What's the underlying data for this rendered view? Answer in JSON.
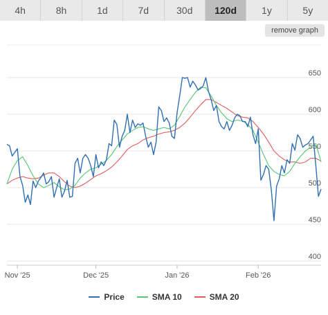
{
  "tabs": [
    {
      "label": "4h",
      "active": false
    },
    {
      "label": "8h",
      "active": false
    },
    {
      "label": "1d",
      "active": false
    },
    {
      "label": "7d",
      "active": false
    },
    {
      "label": "30d",
      "active": false
    },
    {
      "label": "120d",
      "active": true
    },
    {
      "label": "1y",
      "active": false
    },
    {
      "label": "5y",
      "active": false
    }
  ],
  "remove_graph_label": "remove graph",
  "chart_data": {
    "type": "line",
    "title": "",
    "xlabel": "",
    "ylabel": "",
    "ylim": [
      400,
      650
    ],
    "y_ticks": [
      400,
      450,
      500,
      550,
      600,
      650
    ],
    "x_domain": [
      "2025-10-28",
      "2026-02-25"
    ],
    "x_ticks": [
      {
        "date": "2025-11-01",
        "label": "Nov '25"
      },
      {
        "date": "2025-12-01",
        "label": "Dec '25"
      },
      {
        "date": "2026-01-01",
        "label": "Jan '26"
      },
      {
        "date": "2026-02-01",
        "label": "Feb '26"
      }
    ],
    "grid": true,
    "legend_position": "bottom",
    "series": [
      {
        "name": "Price",
        "color": "#2f6fb2",
        "points": [
          [
            "2025-10-28",
            559
          ],
          [
            "2025-10-29",
            557
          ],
          [
            "2025-10-30",
            543
          ],
          [
            "2025-10-31",
            548
          ],
          [
            "2025-11-01",
            553
          ],
          [
            "2025-11-02",
            515
          ],
          [
            "2025-11-03",
            503
          ],
          [
            "2025-11-04",
            480
          ],
          [
            "2025-11-05",
            490
          ],
          [
            "2025-11-06",
            477
          ],
          [
            "2025-11-07",
            509
          ],
          [
            "2025-11-08",
            500
          ],
          [
            "2025-11-09",
            509
          ],
          [
            "2025-11-10",
            514
          ],
          [
            "2025-11-11",
            520
          ],
          [
            "2025-11-12",
            505
          ],
          [
            "2025-11-13",
            508
          ],
          [
            "2025-11-14",
            515
          ],
          [
            "2025-11-15",
            487
          ],
          [
            "2025-11-16",
            500
          ],
          [
            "2025-11-17",
            512
          ],
          [
            "2025-11-18",
            487
          ],
          [
            "2025-11-19",
            495
          ],
          [
            "2025-11-20",
            510
          ],
          [
            "2025-11-21",
            487
          ],
          [
            "2025-11-22",
            488
          ],
          [
            "2025-11-23",
            533
          ],
          [
            "2025-11-24",
            540
          ],
          [
            "2025-11-25",
            520
          ],
          [
            "2025-11-26",
            540
          ],
          [
            "2025-11-27",
            545
          ],
          [
            "2025-11-28",
            540
          ],
          [
            "2025-11-29",
            530
          ],
          [
            "2025-11-30",
            515
          ],
          [
            "2025-12-01",
            545
          ],
          [
            "2025-12-02",
            527
          ],
          [
            "2025-12-03",
            535
          ],
          [
            "2025-12-04",
            530
          ],
          [
            "2025-12-05",
            538
          ],
          [
            "2025-12-06",
            560
          ],
          [
            "2025-12-07",
            557
          ],
          [
            "2025-12-08",
            592
          ],
          [
            "2025-12-09",
            586
          ],
          [
            "2025-12-10",
            555
          ],
          [
            "2025-12-11",
            570
          ],
          [
            "2025-12-12",
            578
          ],
          [
            "2025-12-13",
            600
          ],
          [
            "2025-12-14",
            575
          ],
          [
            "2025-12-15",
            592
          ],
          [
            "2025-12-16",
            582
          ],
          [
            "2025-12-17",
            587
          ],
          [
            "2025-12-18",
            585
          ],
          [
            "2025-12-19",
            588
          ],
          [
            "2025-12-20",
            570
          ],
          [
            "2025-12-21",
            555
          ],
          [
            "2025-12-22",
            562
          ],
          [
            "2025-12-23",
            545
          ],
          [
            "2025-12-24",
            562
          ],
          [
            "2025-12-25",
            610
          ],
          [
            "2025-12-26",
            605
          ],
          [
            "2025-12-27",
            590
          ],
          [
            "2025-12-28",
            595
          ],
          [
            "2025-12-29",
            588
          ],
          [
            "2025-12-30",
            570
          ],
          [
            "2025-12-31",
            567
          ],
          [
            "2026-01-01",
            602
          ],
          [
            "2026-01-02",
            625
          ],
          [
            "2026-01-03",
            650
          ],
          [
            "2026-01-04",
            649
          ],
          [
            "2026-01-05",
            650
          ],
          [
            "2026-01-06",
            637
          ],
          [
            "2026-01-07",
            645
          ],
          [
            "2026-01-08",
            640
          ],
          [
            "2026-01-09",
            633
          ],
          [
            "2026-01-10",
            635
          ],
          [
            "2026-01-11",
            639
          ],
          [
            "2026-01-12",
            650
          ],
          [
            "2026-01-13",
            631
          ],
          [
            "2026-01-14",
            620
          ],
          [
            "2026-01-15",
            605
          ],
          [
            "2026-01-16",
            612
          ],
          [
            "2026-01-17",
            590
          ],
          [
            "2026-01-18",
            583
          ],
          [
            "2026-01-19",
            580
          ],
          [
            "2026-01-20",
            590
          ],
          [
            "2026-01-21",
            578
          ],
          [
            "2026-01-22",
            585
          ],
          [
            "2026-01-23",
            595
          ],
          [
            "2026-01-24",
            600
          ],
          [
            "2026-01-25",
            598
          ],
          [
            "2026-01-26",
            590
          ],
          [
            "2026-01-27",
            590
          ],
          [
            "2026-01-28",
            583
          ],
          [
            "2026-01-29",
            596
          ],
          [
            "2026-01-30",
            572
          ],
          [
            "2026-01-31",
            560
          ],
          [
            "2026-02-01",
            580
          ],
          [
            "2026-02-02",
            510
          ],
          [
            "2026-02-03",
            518
          ],
          [
            "2026-02-04",
            530
          ],
          [
            "2026-02-05",
            525
          ],
          [
            "2026-02-06",
            497
          ],
          [
            "2026-02-07",
            455
          ],
          [
            "2026-02-08",
            502
          ],
          [
            "2026-02-09",
            512
          ],
          [
            "2026-02-10",
            530
          ],
          [
            "2026-02-11",
            520
          ],
          [
            "2026-02-12",
            538
          ],
          [
            "2026-02-13",
            533
          ],
          [
            "2026-02-14",
            560
          ],
          [
            "2026-02-15",
            551
          ],
          [
            "2026-02-16",
            572
          ],
          [
            "2026-02-17",
            567
          ],
          [
            "2026-02-18",
            555
          ],
          [
            "2026-02-19",
            558
          ],
          [
            "2026-02-20",
            560
          ],
          [
            "2026-02-21",
            565
          ],
          [
            "2026-02-22",
            570
          ],
          [
            "2026-02-23",
            530
          ],
          [
            "2026-02-24",
            488
          ],
          [
            "2026-02-25",
            498
          ]
        ]
      },
      {
        "name": "SMA 10",
        "color": "#55c770",
        "points": [
          [
            "2025-10-28",
            505
          ],
          [
            "2025-10-30",
            525
          ],
          [
            "2025-11-01",
            537
          ],
          [
            "2025-11-03",
            542
          ],
          [
            "2025-11-05",
            530
          ],
          [
            "2025-11-07",
            516
          ],
          [
            "2025-11-09",
            505
          ],
          [
            "2025-11-11",
            500
          ],
          [
            "2025-11-13",
            503
          ],
          [
            "2025-11-15",
            507
          ],
          [
            "2025-11-17",
            501
          ],
          [
            "2025-11-19",
            497
          ],
          [
            "2025-11-21",
            498
          ],
          [
            "2025-11-23",
            503
          ],
          [
            "2025-11-25",
            513
          ],
          [
            "2025-11-27",
            520
          ],
          [
            "2025-11-29",
            525
          ],
          [
            "2025-12-01",
            527
          ],
          [
            "2025-12-03",
            532
          ],
          [
            "2025-12-05",
            537
          ],
          [
            "2025-12-07",
            545
          ],
          [
            "2025-12-09",
            556
          ],
          [
            "2025-12-11",
            565
          ],
          [
            "2025-12-13",
            573
          ],
          [
            "2025-12-15",
            578
          ],
          [
            "2025-12-17",
            582
          ],
          [
            "2025-12-19",
            583
          ],
          [
            "2025-12-21",
            580
          ],
          [
            "2025-12-23",
            578
          ],
          [
            "2025-12-25",
            580
          ],
          [
            "2025-12-27",
            582
          ],
          [
            "2025-12-29",
            580
          ],
          [
            "2025-12-31",
            585
          ],
          [
            "2026-01-02",
            597
          ],
          [
            "2026-01-04",
            610
          ],
          [
            "2026-01-06",
            620
          ],
          [
            "2026-01-08",
            630
          ],
          [
            "2026-01-10",
            637
          ],
          [
            "2026-01-12",
            636
          ],
          [
            "2026-01-14",
            625
          ],
          [
            "2026-01-16",
            612
          ],
          [
            "2026-01-18",
            602
          ],
          [
            "2026-01-20",
            594
          ],
          [
            "2026-01-22",
            590
          ],
          [
            "2026-01-24",
            592
          ],
          [
            "2026-01-26",
            591
          ],
          [
            "2026-01-28",
            586
          ],
          [
            "2026-01-30",
            578
          ],
          [
            "2026-02-01",
            562
          ],
          [
            "2026-02-03",
            545
          ],
          [
            "2026-02-05",
            530
          ],
          [
            "2026-02-07",
            522
          ],
          [
            "2026-02-09",
            518
          ],
          [
            "2026-02-11",
            516
          ],
          [
            "2026-02-13",
            522
          ],
          [
            "2026-02-15",
            533
          ],
          [
            "2026-02-17",
            542
          ],
          [
            "2026-02-19",
            550
          ],
          [
            "2026-02-21",
            555
          ],
          [
            "2026-02-23",
            560
          ],
          [
            "2026-02-25",
            535
          ]
        ]
      },
      {
        "name": "SMA 20",
        "color": "#e15b5b",
        "points": [
          [
            "2025-10-28",
            505
          ],
          [
            "2025-10-30",
            510
          ],
          [
            "2025-11-01",
            513
          ],
          [
            "2025-11-03",
            515
          ],
          [
            "2025-11-05",
            513
          ],
          [
            "2025-11-07",
            512
          ],
          [
            "2025-11-09",
            513
          ],
          [
            "2025-11-11",
            517
          ],
          [
            "2025-11-13",
            520
          ],
          [
            "2025-11-15",
            520
          ],
          [
            "2025-11-17",
            515
          ],
          [
            "2025-11-19",
            508
          ],
          [
            "2025-11-21",
            502
          ],
          [
            "2025-11-23",
            500
          ],
          [
            "2025-11-25",
            502
          ],
          [
            "2025-11-27",
            506
          ],
          [
            "2025-11-29",
            511
          ],
          [
            "2025-12-01",
            516
          ],
          [
            "2025-12-03",
            519
          ],
          [
            "2025-12-05",
            523
          ],
          [
            "2025-12-07",
            528
          ],
          [
            "2025-12-09",
            535
          ],
          [
            "2025-12-11",
            543
          ],
          [
            "2025-12-13",
            552
          ],
          [
            "2025-12-15",
            557
          ],
          [
            "2025-12-17",
            560
          ],
          [
            "2025-12-19",
            565
          ],
          [
            "2025-12-21",
            568
          ],
          [
            "2025-12-23",
            570
          ],
          [
            "2025-12-25",
            573
          ],
          [
            "2025-12-27",
            575
          ],
          [
            "2025-12-29",
            576
          ],
          [
            "2025-12-31",
            578
          ],
          [
            "2026-01-02",
            582
          ],
          [
            "2026-01-04",
            588
          ],
          [
            "2026-01-06",
            596
          ],
          [
            "2026-01-08",
            605
          ],
          [
            "2026-01-10",
            613
          ],
          [
            "2026-01-12",
            620
          ],
          [
            "2026-01-14",
            620
          ],
          [
            "2026-01-16",
            616
          ],
          [
            "2026-01-18",
            612
          ],
          [
            "2026-01-20",
            608
          ],
          [
            "2026-01-22",
            603
          ],
          [
            "2026-01-24",
            598
          ],
          [
            "2026-01-26",
            596
          ],
          [
            "2026-01-28",
            595
          ],
          [
            "2026-01-30",
            590
          ],
          [
            "2026-02-01",
            582
          ],
          [
            "2026-02-03",
            573
          ],
          [
            "2026-02-05",
            562
          ],
          [
            "2026-02-07",
            550
          ],
          [
            "2026-02-09",
            543
          ],
          [
            "2026-02-11",
            538
          ],
          [
            "2026-02-13",
            535
          ],
          [
            "2026-02-15",
            535
          ],
          [
            "2026-02-17",
            533
          ],
          [
            "2026-02-19",
            535
          ],
          [
            "2026-02-21",
            540
          ],
          [
            "2026-02-23",
            540
          ],
          [
            "2026-02-25",
            536
          ]
        ]
      }
    ]
  }
}
